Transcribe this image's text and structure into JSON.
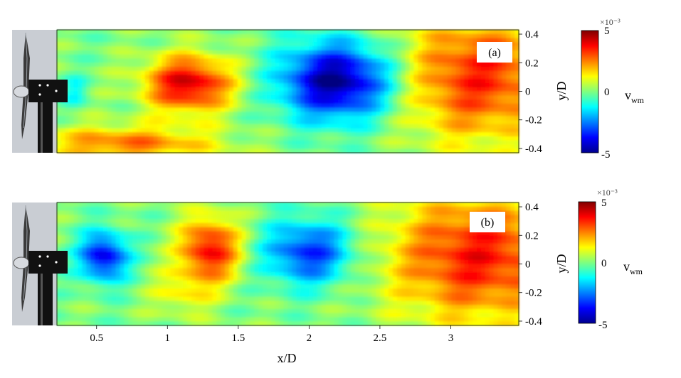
{
  "chart_data": {
    "type": "heatmap",
    "xlabel": "x/D",
    "ylabel": "y/D",
    "x_ticks": [
      "0.5",
      "1",
      "1.5",
      "2",
      "2.5",
      "3"
    ],
    "y_ticks": [
      "0.4",
      "0.2",
      "0",
      "-0.2",
      "-0.4"
    ],
    "xlim": [
      0.22,
      3.48
    ],
    "ylim": [
      -0.43,
      0.43
    ],
    "colorbar": {
      "label_main": "v",
      "label_sub": "wm",
      "exponent": "×10⁻³",
      "ticks": [
        "5",
        "0",
        "-5"
      ],
      "range": [
        -5,
        5
      ],
      "colormap": "jet"
    },
    "panels": [
      {
        "label": "(a)",
        "field_features": [
          {
            "x": 1.15,
            "y": 0.05,
            "value": 4.2,
            "sx": 0.22,
            "sy": 0.14
          },
          {
            "x": 2.2,
            "y": 0.07,
            "value": -5.0,
            "sx": 0.28,
            "sy": 0.19
          },
          {
            "x": 3.2,
            "y": 0.1,
            "value": 3.4,
            "sx": 0.4,
            "sy": 0.32
          },
          {
            "x": 0.7,
            "y": -0.37,
            "value": 2.6,
            "sx": 0.45,
            "sy": 0.09
          },
          {
            "x": 0.35,
            "y": 0.0,
            "value": -1.2,
            "sx": 0.06,
            "sy": 0.07
          }
        ]
      },
      {
        "label": "(b)",
        "field_features": [
          {
            "x": 0.55,
            "y": 0.05,
            "value": -4.0,
            "sx": 0.12,
            "sy": 0.12
          },
          {
            "x": 1.3,
            "y": 0.1,
            "value": 3.8,
            "sx": 0.15,
            "sy": 0.16
          },
          {
            "x": 2.0,
            "y": 0.08,
            "value": -3.4,
            "sx": 0.22,
            "sy": 0.16
          },
          {
            "x": 3.2,
            "y": 0.05,
            "value": 3.6,
            "sx": 0.45,
            "sy": 0.32
          },
          {
            "x": 1.1,
            "y": -0.2,
            "value": 1.2,
            "sx": 0.15,
            "sy": 0.12
          }
        ]
      }
    ]
  }
}
